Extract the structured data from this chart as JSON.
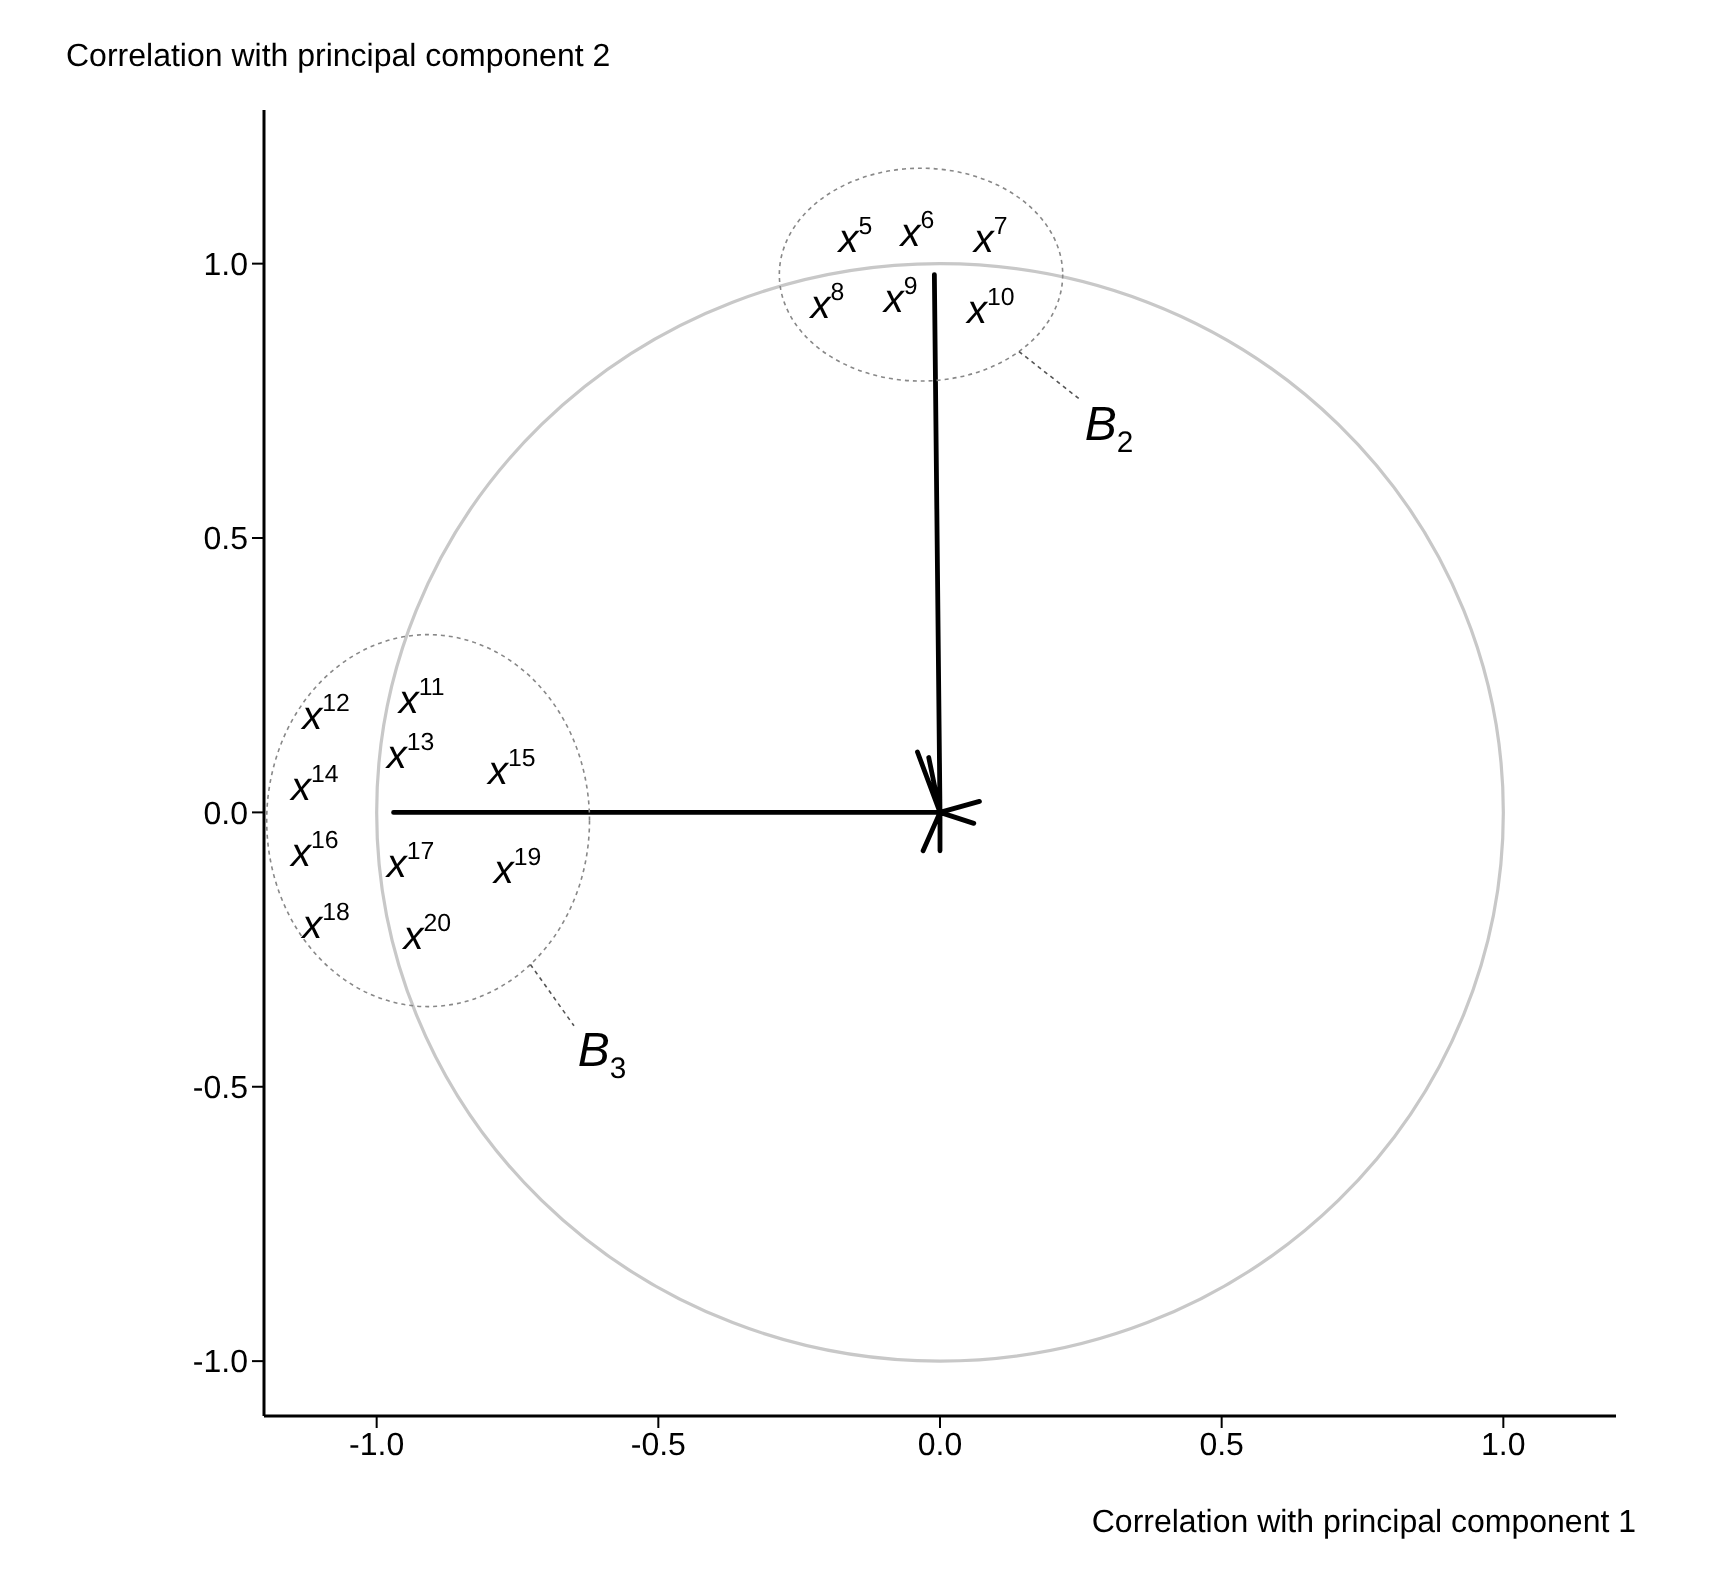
{
  "chart_data": {
    "type": "line",
    "xlabel": "Correlation with principal component 1",
    "ylabel": "Correlation with principal component 2",
    "xlim": [
      -1.2,
      1.2
    ],
    "ylim": [
      -1.1,
      1.28
    ],
    "xticks": [
      {
        "value": -1,
        "label": "-1.0"
      },
      {
        "value": -0.5,
        "label": "-0.5"
      },
      {
        "value": 0,
        "label": "0.0"
      },
      {
        "value": 0.5,
        "label": "0.5"
      },
      {
        "value": 1,
        "label": "1.0"
      }
    ],
    "yticks": [
      {
        "value": -1,
        "label": "-1.0"
      },
      {
        "value": -0.5,
        "label": "-0.5"
      },
      {
        "value": 0,
        "label": "0.0"
      },
      {
        "value": 0.5,
        "label": "0.5"
      },
      {
        "value": 1,
        "label": "1.0"
      }
    ],
    "grid": false,
    "legend": false,
    "marker": "none",
    "line_style": "solid",
    "series": [
      {
        "color": "#000000",
        "x": [
          0,
          -0.01,
          0,
          -0.97,
          0,
          -0.04,
          0,
          -0.02,
          0,
          0.07,
          0,
          0.06,
          0,
          -0.03,
          0,
          0
        ],
        "values": [
          0,
          0.98,
          0,
          0,
          0,
          0.11,
          0,
          0.1,
          0,
          0.02,
          0,
          -0.02,
          0,
          -0.07,
          0,
          -0.07
        ]
      }
    ],
    "annotations": [
      "x$^{5}$",
      "x$^{6}$",
      "x$^{7}$",
      "x$^{8}$",
      "x$^{9}$",
      "x$^{10}$",
      "x$^{11}$",
      "x$^{12}$",
      "x$^{13}$",
      "x$^{14}$",
      "x$^{15}$",
      "x$^{16}$",
      "x$^{17}$",
      "x$^{18}$",
      "x$^{19}$",
      "x$^{20}$",
      "B$_{2}$",
      "B$_{3}$"
    ]
  }
}
